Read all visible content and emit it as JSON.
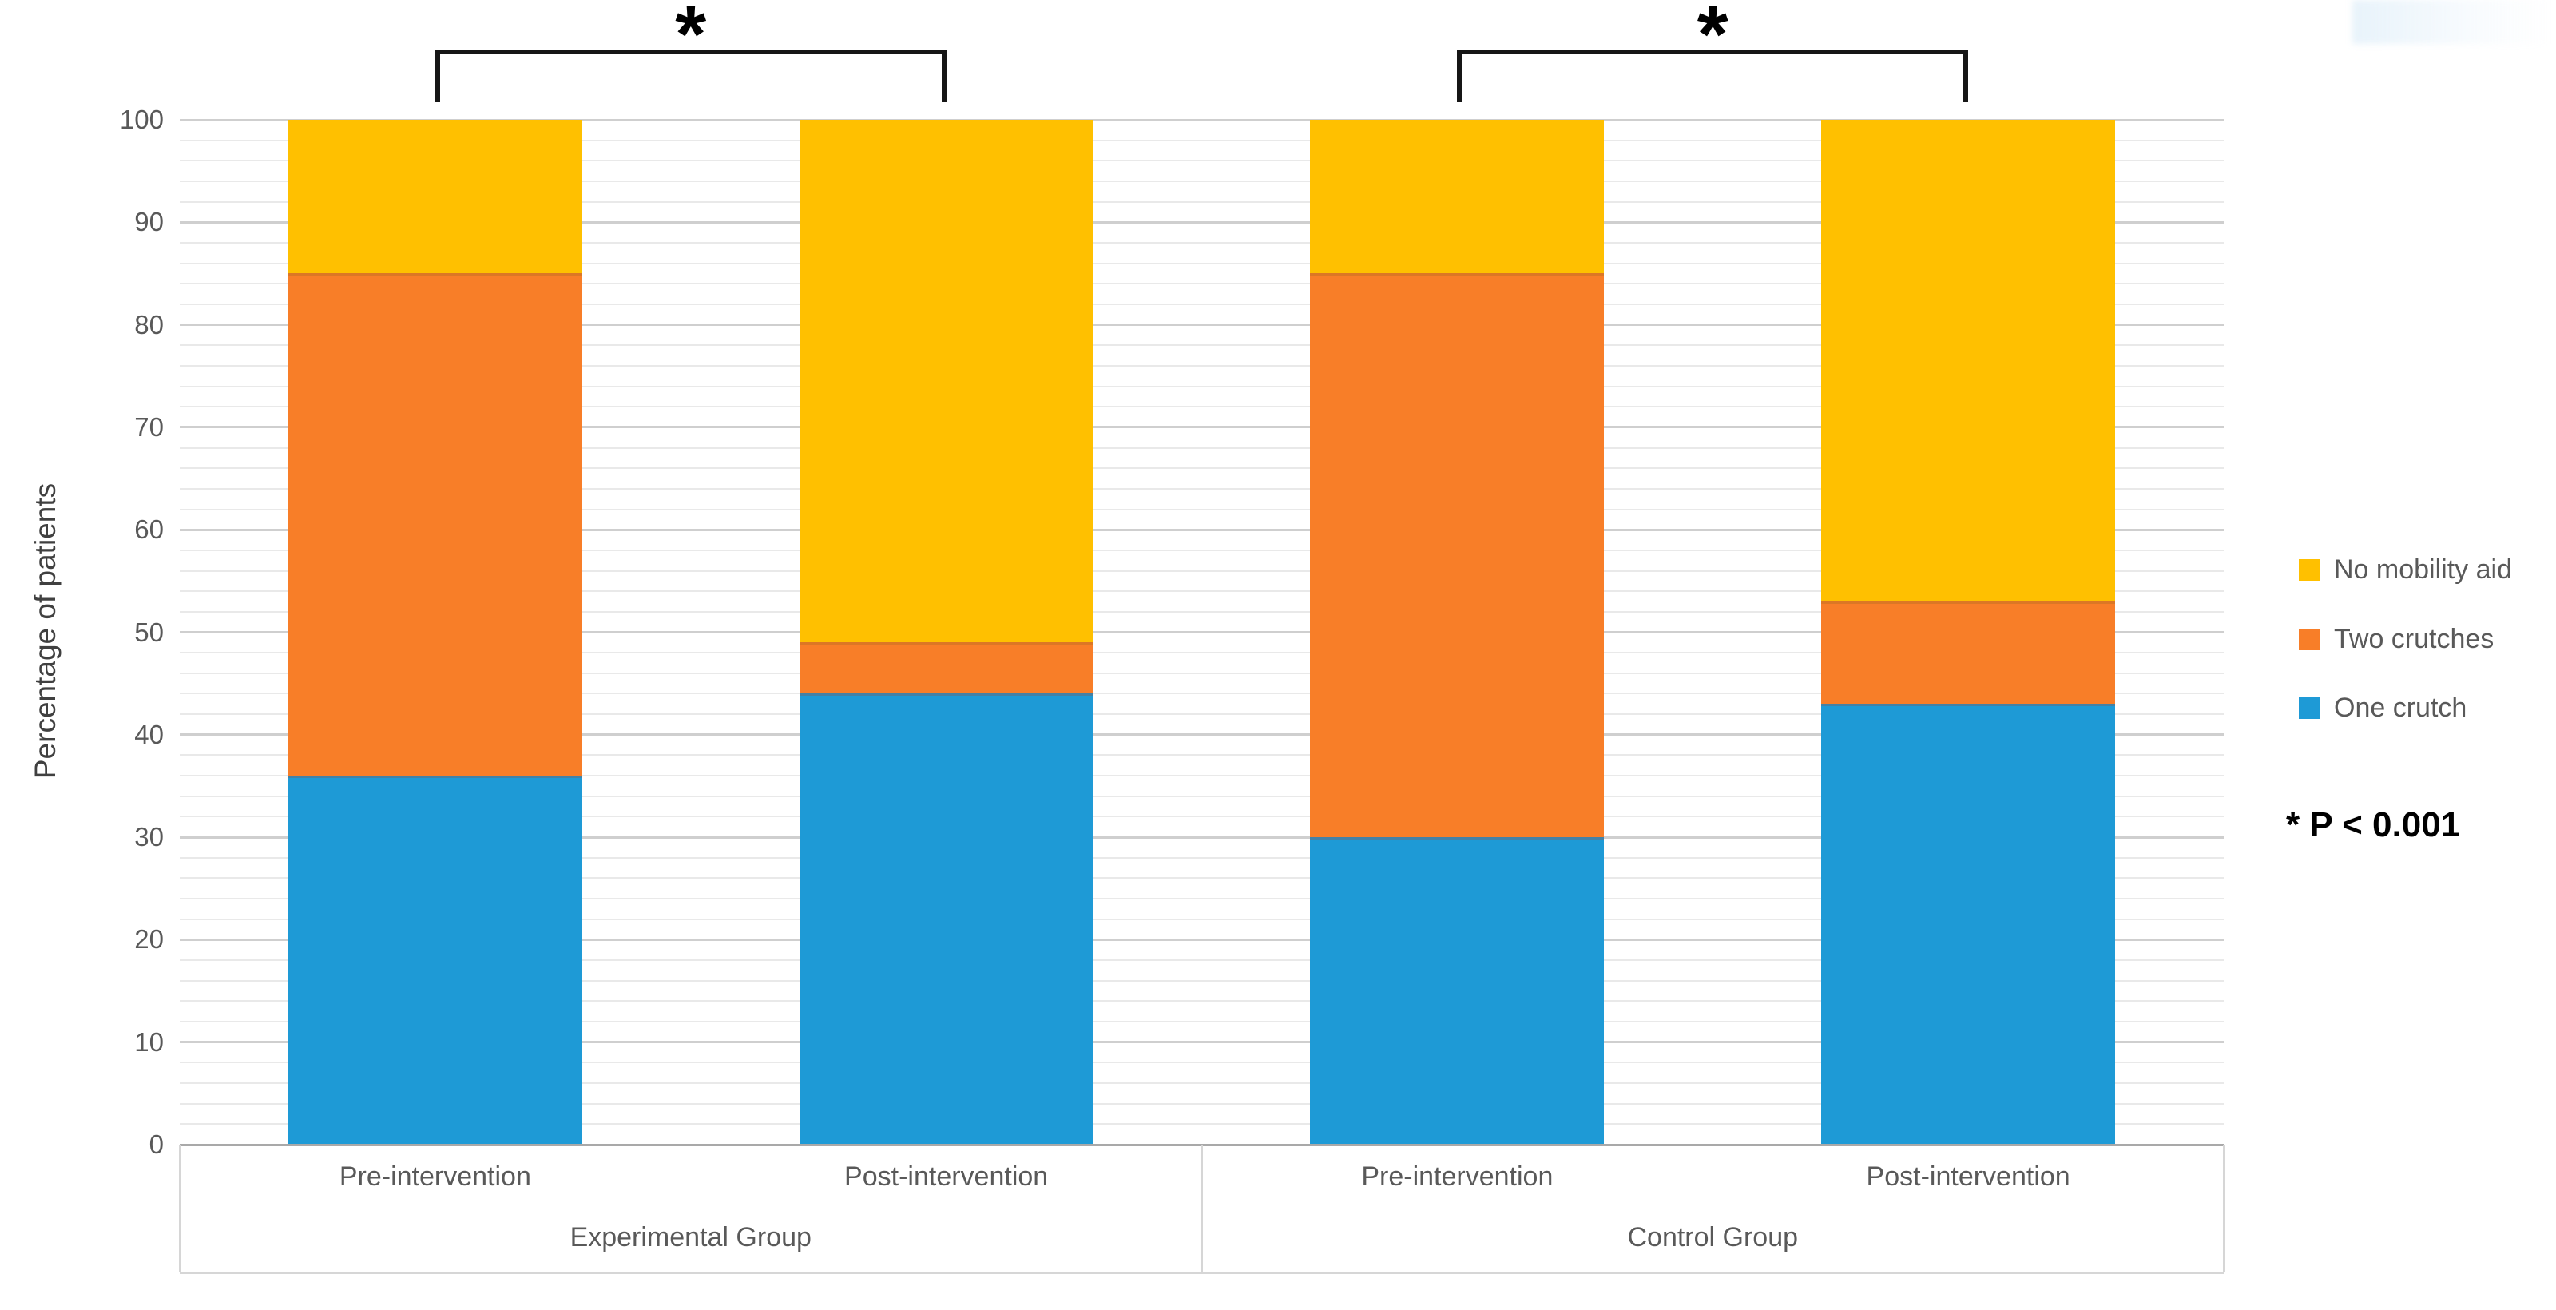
{
  "chart_data": {
    "type": "bar",
    "stacked": true,
    "percent": true,
    "title": "",
    "ylabel": "Percentage of patients",
    "xlabel": "",
    "ylim": [
      0,
      100
    ],
    "ytick_step": 10,
    "minor_grid_step": 2,
    "grid": true,
    "legend_position": "right",
    "groups": [
      {
        "label": "Experimental Group",
        "categories": [
          "Pre-intervention",
          "Post-intervention"
        ]
      },
      {
        "label": "Control Group",
        "categories": [
          "Pre-intervention",
          "Post-intervention"
        ]
      }
    ],
    "categories": [
      "Pre-intervention",
      "Post-intervention",
      "Pre-intervention",
      "Post-intervention"
    ],
    "series": [
      {
        "name": "One crutch",
        "color": "#1E9AD6",
        "values": [
          36,
          44,
          30,
          43
        ]
      },
      {
        "name": "Two crutches",
        "color": "#F87E28",
        "values": [
          49,
          5,
          55,
          10
        ]
      },
      {
        "name": "No mobility aid",
        "color": "#FFC000",
        "values": [
          15,
          51,
          15,
          47
        ]
      }
    ],
    "legend_order": [
      "No mobility aid",
      "Two crutches",
      "One crutch"
    ],
    "significance_brackets": [
      {
        "pair": [
          0,
          1
        ],
        "label": "*"
      },
      {
        "pair": [
          2,
          3
        ],
        "label": "*"
      }
    ],
    "p_note": "* P < 0.001",
    "colors": {
      "tick_label": "#595959",
      "axis_title": "#404040",
      "category_label": "#595959",
      "legend_label": "#595959",
      "major_grid": "#cfcfcf",
      "minor_grid": "#e9e9e9",
      "axis_line": "#a9a9a9",
      "category_box_line": "#d6d6d6",
      "bracket": "#161616",
      "note": "#000000"
    }
  }
}
